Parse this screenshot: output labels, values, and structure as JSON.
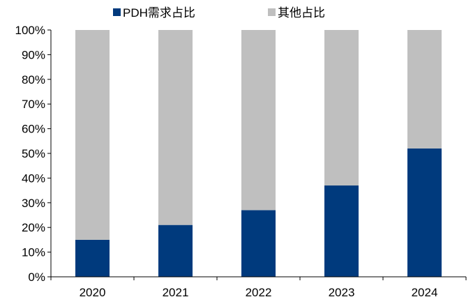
{
  "chart_data": {
    "type": "bar",
    "stacked": true,
    "categories": [
      "2020",
      "2021",
      "2022",
      "2023",
      "2024"
    ],
    "series": [
      {
        "name": "PDH需求占比",
        "color": "#003a7d",
        "values": [
          15,
          21,
          27,
          37,
          52
        ]
      },
      {
        "name": "其他占比",
        "color": "#bfbfbf",
        "values": [
          85,
          79,
          73,
          63,
          48
        ]
      }
    ],
    "ylim": [
      0,
      100
    ],
    "yticks": [
      "0%",
      "10%",
      "20%",
      "30%",
      "40%",
      "50%",
      "60%",
      "70%",
      "80%",
      "90%",
      "100%"
    ],
    "grid": false,
    "legend_position": "top"
  }
}
